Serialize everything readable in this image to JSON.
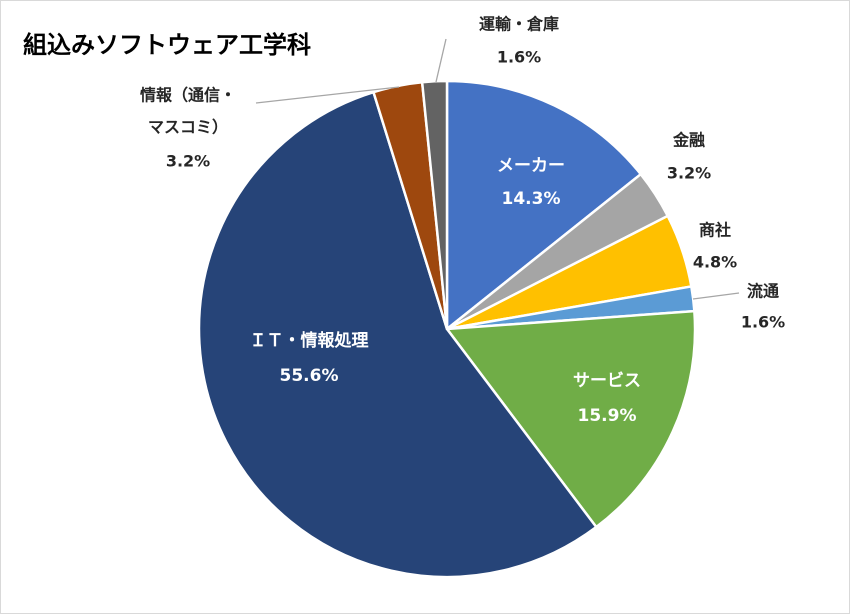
{
  "chart_data": {
    "type": "pie",
    "title": "組込みソフトウェア工学科",
    "start_angle_deg": 0,
    "direction": "clockwise",
    "slices": [
      {
        "name": "メーカー",
        "value": 14.3,
        "label": "14.3%",
        "color": "#4472c4",
        "label_position": "inside"
      },
      {
        "name": "金融",
        "value": 3.2,
        "label": "3.2%",
        "color": "#a5a5a5",
        "label_position": "outside"
      },
      {
        "name": "商社",
        "value": 4.8,
        "label": "4.8%",
        "color": "#ffc000",
        "label_position": "outside"
      },
      {
        "name": "流通",
        "value": 1.6,
        "label": "1.6%",
        "color": "#5b9bd5",
        "label_position": "outside"
      },
      {
        "name": "サービス",
        "value": 15.9,
        "label": "15.9%",
        "color": "#70ad47",
        "label_position": "inside"
      },
      {
        "name": "ＩＴ・情報処理",
        "value": 55.6,
        "label": "55.6%",
        "color": "#264478",
        "label_position": "inside"
      },
      {
        "name": "情報（通信・マスコミ）",
        "name_lines": [
          "情報（通信・",
          "マスコミ）"
        ],
        "value": 3.2,
        "label": "3.2%",
        "color": "#9e480e",
        "label_position": "outside"
      },
      {
        "name": "運輸・倉庫",
        "value": 1.6,
        "label": "1.6%",
        "color": "#636363",
        "label_position": "outside"
      }
    ]
  }
}
